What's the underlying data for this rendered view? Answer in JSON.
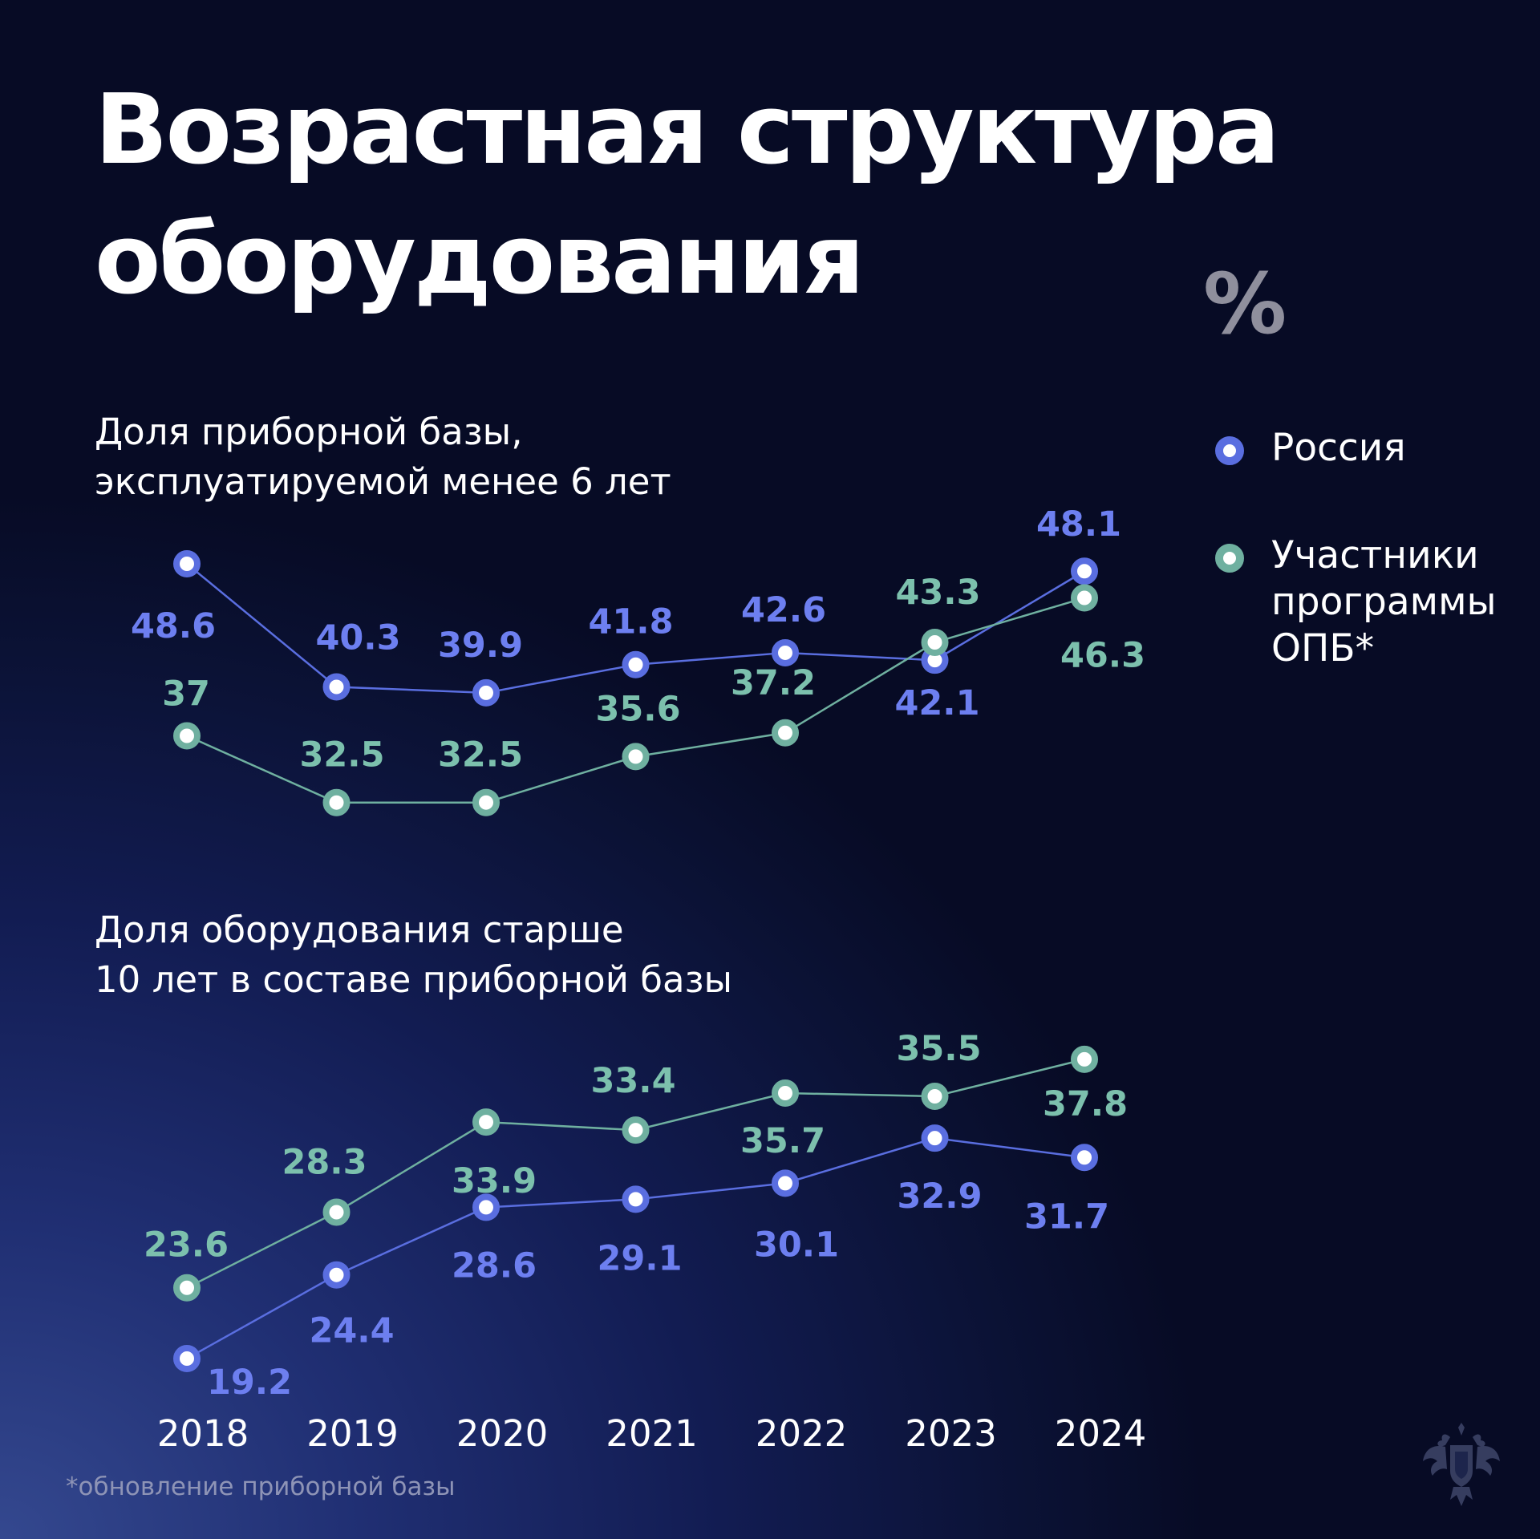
{
  "title": [
    "Возрастная структура",
    "оборудования"
  ],
  "unit": "%",
  "panels": [
    {
      "title": [
        "Доля приборной базы,",
        "эксплуатируемой менее 6 лет"
      ]
    },
    {
      "title": [
        "Доля оборудования старше",
        "10 лет в составе приборной базы"
      ]
    }
  ],
  "legend": {
    "russia": "Россия",
    "opb": "Участники программы ОПБ*"
  },
  "footnote": "обновление приборной базы",
  "colors": {
    "russia": "#5a6ee0",
    "opb": "#6fb0a0",
    "russia_label": "#6d7ff0",
    "opb_label": "#7cc0ad"
  },
  "chart_data": [
    {
      "type": "line",
      "title": "Доля приборной базы, эксплуатируемой менее 6 лет",
      "x": [
        "2018",
        "2019",
        "2020",
        "2021",
        "2022",
        "2023",
        "2024"
      ],
      "series": [
        {
          "name": "Россия",
          "color": "#5a6ee0",
          "values": [
            48.6,
            40.3,
            39.9,
            41.8,
            42.6,
            42.1,
            48.1
          ],
          "labels": [
            "48.6",
            "40.3",
            "39.9",
            "41.8",
            "42.6",
            "42.1",
            "48.1"
          ]
        },
        {
          "name": "Участники программы ОПБ*",
          "color": "#6fb0a0",
          "values": [
            37,
            32.5,
            32.5,
            35.6,
            37.2,
            43.3,
            46.3
          ],
          "labels": [
            "37",
            "32.5",
            "32.5",
            "35.6",
            "37.2",
            "43.3",
            "46.3"
          ]
        }
      ]
    },
    {
      "type": "line",
      "title": "Доля оборудования старше 10 лет в составе приборной базы",
      "x": [
        "2018",
        "2019",
        "2020",
        "2021",
        "2022",
        "2023",
        "2024"
      ],
      "series": [
        {
          "name": "Россия",
          "color": "#5a6ee0",
          "values": [
            19.2,
            24.4,
            28.6,
            29.1,
            30.1,
            32.9,
            31.7
          ],
          "labels": [
            "19.2",
            "24.4",
            "28.6",
            "29.1",
            "30.1",
            "32.9",
            "31.7"
          ]
        },
        {
          "name": "Участники программы ОПБ*",
          "color": "#6fb0a0",
          "values": [
            23.6,
            28.3,
            33.9,
            33.4,
            35.7,
            35.5,
            37.8
          ],
          "labels": [
            "23.6",
            "28.3",
            "33.9",
            "33.4",
            "35.7",
            "35.5",
            "37.8"
          ]
        }
      ]
    }
  ]
}
